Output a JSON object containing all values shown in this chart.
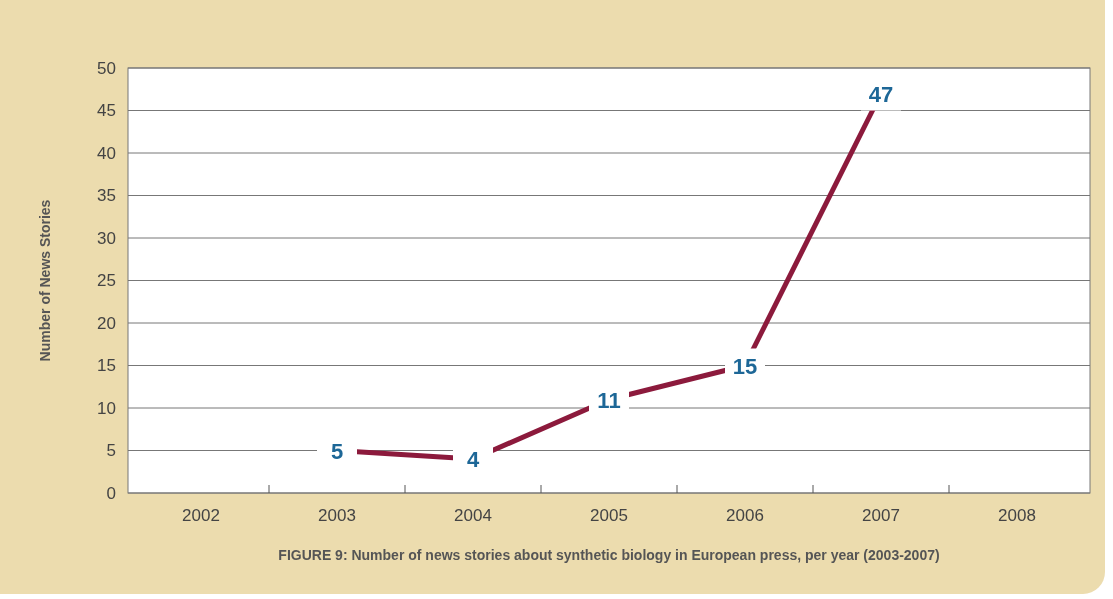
{
  "chart_data": {
    "type": "line",
    "categories": [
      "2002",
      "2003",
      "2004",
      "2005",
      "2006",
      "2007",
      "2008"
    ],
    "series": [
      {
        "color": "#8c1a3c",
        "values": [
          null,
          5,
          4,
          11,
          15,
          47,
          null
        ]
      }
    ],
    "ylabel": "Number of News Stories",
    "ylim": [
      0,
      50
    ],
    "yticks": [
      0,
      5,
      10,
      15,
      20,
      25,
      30,
      35,
      40,
      45,
      50
    ],
    "grid": "y",
    "data_labels": true,
    "marker": "square",
    "annotations": [
      "FIGURE 9: Number of news stories about synthetic biology in European press, per year (2003-2007)"
    ]
  }
}
